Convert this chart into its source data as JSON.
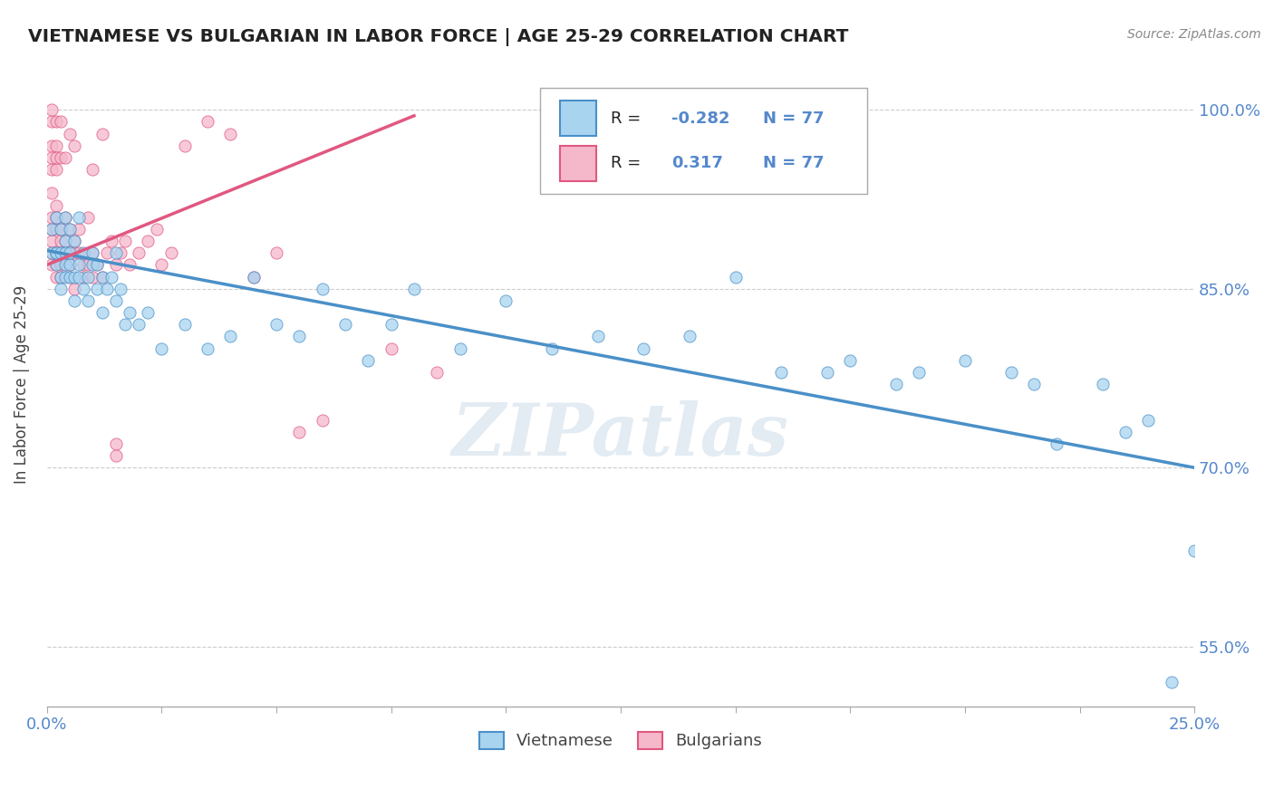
{
  "title": "VIETNAMESE VS BULGARIAN IN LABOR FORCE | AGE 25-29 CORRELATION CHART",
  "source": "Source: ZipAtlas.com",
  "ylabel": "In Labor Force | Age 25-29",
  "xlim": [
    0.0,
    0.25
  ],
  "ylim": [
    0.5,
    1.04
  ],
  "ytick_labels": [
    "55.0%",
    "70.0%",
    "85.0%",
    "100.0%"
  ],
  "ytick_values": [
    0.55,
    0.7,
    0.85,
    1.0
  ],
  "watermark": "ZIPatlas",
  "R_vietnamese": -0.282,
  "N_vietnamese": 77,
  "R_bulgarian": 0.317,
  "N_bulgarian": 77,
  "color_vietnamese": "#a8d4f0",
  "color_bulgarian": "#f5b8cb",
  "color_line_vietnamese": "#4a90c8",
  "color_line_bulgarian": "#e05880",
  "legend_label_vietnamese": "Vietnamese",
  "legend_label_bulgarian": "Bulgarians",
  "background_color": "#ffffff",
  "grid_color": "#cccccc",
  "title_color": "#222222",
  "axis_label_color": "#5588cc",
  "viet_x": [
    0.001,
    0.001,
    0.002,
    0.002,
    0.002,
    0.002,
    0.003,
    0.003,
    0.003,
    0.003,
    0.004,
    0.004,
    0.004,
    0.004,
    0.004,
    0.005,
    0.005,
    0.005,
    0.005,
    0.006,
    0.006,
    0.006,
    0.007,
    0.007,
    0.007,
    0.008,
    0.008,
    0.009,
    0.009,
    0.01,
    0.01,
    0.011,
    0.011,
    0.012,
    0.012,
    0.013,
    0.014,
    0.015,
    0.015,
    0.016,
    0.017,
    0.018,
    0.02,
    0.022,
    0.025,
    0.03,
    0.035,
    0.04,
    0.045,
    0.05,
    0.055,
    0.06,
    0.065,
    0.07,
    0.075,
    0.08,
    0.09,
    0.1,
    0.11,
    0.12,
    0.13,
    0.14,
    0.15,
    0.16,
    0.17,
    0.175,
    0.185,
    0.19,
    0.2,
    0.21,
    0.215,
    0.22,
    0.23,
    0.235,
    0.24,
    0.245,
    0.25
  ],
  "viet_y": [
    0.88,
    0.9,
    0.88,
    0.87,
    0.91,
    0.88,
    0.9,
    0.86,
    0.85,
    0.88,
    0.87,
    0.89,
    0.88,
    0.91,
    0.86,
    0.86,
    0.9,
    0.87,
    0.88,
    0.86,
    0.89,
    0.84,
    0.87,
    0.91,
    0.86,
    0.88,
    0.85,
    0.86,
    0.84,
    0.87,
    0.88,
    0.87,
    0.85,
    0.86,
    0.83,
    0.85,
    0.86,
    0.84,
    0.88,
    0.85,
    0.82,
    0.83,
    0.82,
    0.83,
    0.8,
    0.82,
    0.8,
    0.81,
    0.86,
    0.82,
    0.81,
    0.85,
    0.82,
    0.79,
    0.82,
    0.85,
    0.8,
    0.84,
    0.8,
    0.81,
    0.8,
    0.81,
    0.86,
    0.78,
    0.78,
    0.79,
    0.77,
    0.78,
    0.79,
    0.78,
    0.77,
    0.72,
    0.77,
    0.73,
    0.74,
    0.52,
    0.63
  ],
  "bulg_x": [
    0.001,
    0.001,
    0.001,
    0.001,
    0.001,
    0.001,
    0.001,
    0.001,
    0.001,
    0.001,
    0.001,
    0.002,
    0.002,
    0.002,
    0.002,
    0.002,
    0.002,
    0.002,
    0.002,
    0.002,
    0.002,
    0.002,
    0.003,
    0.003,
    0.003,
    0.003,
    0.003,
    0.003,
    0.003,
    0.004,
    0.004,
    0.004,
    0.004,
    0.004,
    0.005,
    0.005,
    0.005,
    0.005,
    0.005,
    0.006,
    0.006,
    0.006,
    0.006,
    0.007,
    0.007,
    0.008,
    0.008,
    0.009,
    0.009,
    0.01,
    0.01,
    0.01,
    0.011,
    0.012,
    0.012,
    0.013,
    0.014,
    0.015,
    0.015,
    0.015,
    0.016,
    0.017,
    0.018,
    0.02,
    0.022,
    0.024,
    0.025,
    0.027,
    0.03,
    0.035,
    0.04,
    0.045,
    0.05,
    0.055,
    0.06,
    0.075,
    0.085
  ],
  "bulg_y": [
    0.88,
    0.9,
    0.87,
    0.89,
    0.91,
    0.93,
    0.95,
    0.97,
    0.99,
    1.0,
    0.96,
    0.88,
    0.86,
    0.87,
    0.9,
    0.92,
    0.95,
    0.97,
    0.99,
    0.96,
    0.91,
    0.88,
    0.89,
    0.87,
    0.88,
    0.86,
    0.9,
    0.96,
    0.99,
    0.89,
    0.88,
    0.87,
    0.91,
    0.96,
    0.88,
    0.9,
    0.87,
    0.86,
    0.98,
    0.89,
    0.88,
    0.85,
    0.97,
    0.88,
    0.9,
    0.87,
    0.86,
    0.87,
    0.91,
    0.88,
    0.86,
    0.95,
    0.87,
    0.86,
    0.98,
    0.88,
    0.89,
    0.87,
    0.72,
    0.71,
    0.88,
    0.89,
    0.87,
    0.88,
    0.89,
    0.9,
    0.87,
    0.88,
    0.97,
    0.99,
    0.98,
    0.86,
    0.88,
    0.73,
    0.74,
    0.8,
    0.78
  ],
  "viet_line_x0": 0.0,
  "viet_line_y0": 0.882,
  "viet_line_x1": 0.25,
  "viet_line_y1": 0.7,
  "bulg_line_x0": 0.0,
  "bulg_line_y0": 0.87,
  "bulg_line_x1": 0.08,
  "bulg_line_y1": 0.995
}
